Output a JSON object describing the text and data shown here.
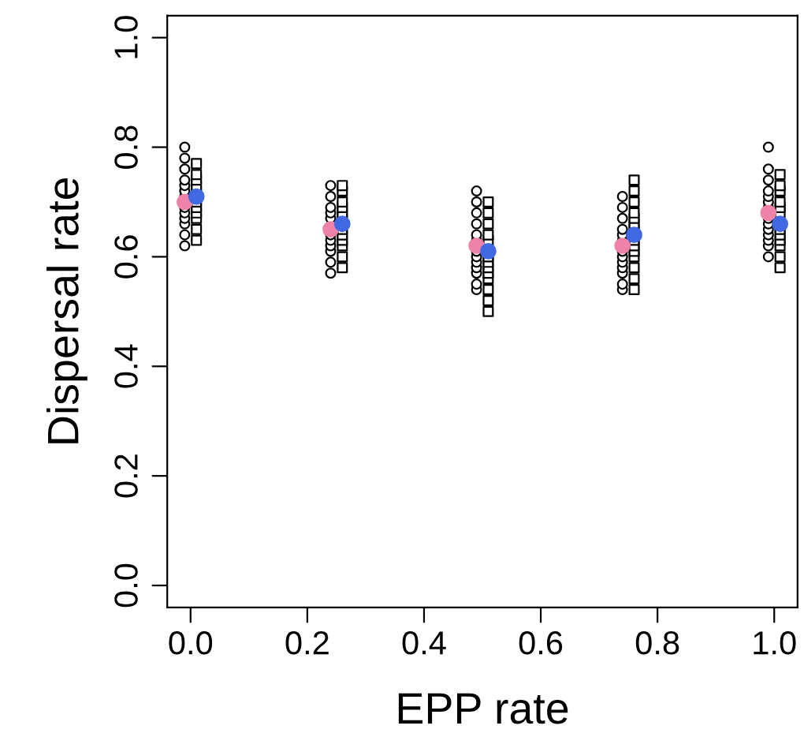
{
  "chart_data": {
    "type": "scatter",
    "xlabel": "EPP rate",
    "ylabel": "Dispersal rate",
    "xlim": [
      -0.04,
      1.04
    ],
    "ylim": [
      -0.04,
      1.04
    ],
    "xticks": [
      {
        "value": 0,
        "label": "0.0"
      },
      {
        "value": 0.2,
        "label": "0.2"
      },
      {
        "value": 0.4,
        "label": "0.4"
      },
      {
        "value": 0.6,
        "label": "0.6"
      },
      {
        "value": 0.8,
        "label": "0.8"
      },
      {
        "value": 1,
        "label": "1.0"
      }
    ],
    "yticks": [
      {
        "value": 0,
        "label": "0.0"
      },
      {
        "value": 0.2,
        "label": "0.2"
      },
      {
        "value": 0.4,
        "label": "0.4"
      },
      {
        "value": 0.6,
        "label": "0.6"
      },
      {
        "value": 0.8,
        "label": "0.8"
      },
      {
        "value": 1,
        "label": "1.0"
      }
    ],
    "grid": false,
    "legend": false,
    "series": [
      {
        "marker": "circle",
        "color": "#000000",
        "x": [
          -0.01,
          -0.01,
          -0.01,
          -0.01,
          -0.01,
          -0.01,
          -0.01,
          -0.01,
          -0.01,
          -0.01,
          -0.01,
          -0.01,
          -0.01,
          0.24,
          0.24,
          0.24,
          0.24,
          0.24,
          0.24,
          0.24,
          0.24,
          0.24,
          0.24,
          0.24,
          0.49,
          0.49,
          0.49,
          0.49,
          0.49,
          0.49,
          0.49,
          0.49,
          0.49,
          0.49,
          0.49,
          0.49,
          0.49,
          0.74,
          0.74,
          0.74,
          0.74,
          0.74,
          0.74,
          0.74,
          0.74,
          0.74,
          0.74,
          0.74,
          0.74,
          0.74,
          0.99,
          0.99,
          0.99,
          0.99,
          0.99,
          0.99,
          0.99,
          0.99,
          0.99,
          0.99,
          0.99,
          0.99,
          0.99,
          0.99
        ],
        "values": [
          0.62,
          0.64,
          0.66,
          0.67,
          0.68,
          0.69,
          0.71,
          0.72,
          0.73,
          0.74,
          0.76,
          0.78,
          0.8,
          0.57,
          0.59,
          0.61,
          0.62,
          0.63,
          0.64,
          0.67,
          0.68,
          0.69,
          0.71,
          0.73,
          0.54,
          0.55,
          0.57,
          0.58,
          0.59,
          0.6,
          0.61,
          0.63,
          0.64,
          0.66,
          0.68,
          0.7,
          0.72,
          0.54,
          0.55,
          0.57,
          0.58,
          0.59,
          0.6,
          0.61,
          0.63,
          0.64,
          0.65,
          0.67,
          0.69,
          0.71,
          0.6,
          0.62,
          0.63,
          0.64,
          0.65,
          0.66,
          0.67,
          0.69,
          0.7,
          0.71,
          0.72,
          0.74,
          0.76,
          0.8
        ]
      },
      {
        "marker": "square",
        "color": "#000000",
        "x": [
          0.01,
          0.01,
          0.01,
          0.01,
          0.01,
          0.01,
          0.01,
          0.01,
          0.01,
          0.01,
          0.01,
          0.26,
          0.26,
          0.26,
          0.26,
          0.26,
          0.26,
          0.26,
          0.26,
          0.26,
          0.26,
          0.26,
          0.26,
          0.51,
          0.51,
          0.51,
          0.51,
          0.51,
          0.51,
          0.51,
          0.51,
          0.51,
          0.51,
          0.51,
          0.51,
          0.51,
          0.76,
          0.76,
          0.76,
          0.76,
          0.76,
          0.76,
          0.76,
          0.76,
          0.76,
          0.76,
          0.76,
          0.76,
          0.76,
          0.76,
          1.01,
          1.01,
          1.01,
          1.01,
          1.01,
          1.01,
          1.01,
          1.01,
          1.01,
          1.01,
          1.01,
          1.01
        ],
        "values": [
          0.63,
          0.65,
          0.67,
          0.68,
          0.69,
          0.7,
          0.72,
          0.73,
          0.74,
          0.75,
          0.77,
          0.58,
          0.6,
          0.62,
          0.63,
          0.64,
          0.65,
          0.67,
          0.68,
          0.69,
          0.7,
          0.72,
          0.73,
          0.5,
          0.52,
          0.54,
          0.56,
          0.57,
          0.58,
          0.59,
          0.6,
          0.63,
          0.64,
          0.66,
          0.68,
          0.7,
          0.54,
          0.56,
          0.58,
          0.6,
          0.61,
          0.62,
          0.63,
          0.65,
          0.66,
          0.67,
          0.68,
          0.7,
          0.72,
          0.74,
          0.58,
          0.6,
          0.62,
          0.63,
          0.64,
          0.65,
          0.68,
          0.69,
          0.7,
          0.72,
          0.73,
          0.75
        ]
      },
      {
        "marker": "circle",
        "color": "#ee82a8",
        "x": [
          -0.01,
          0.24,
          0.49,
          0.74,
          0.99
        ],
        "values": [
          0.7,
          0.65,
          0.62,
          0.62,
          0.68
        ]
      },
      {
        "marker": "circle",
        "color": "#4169e1",
        "x": [
          0.01,
          0.26,
          0.51,
          0.76,
          1.01
        ],
        "values": [
          0.71,
          0.66,
          0.61,
          0.64,
          0.66
        ]
      }
    ]
  }
}
